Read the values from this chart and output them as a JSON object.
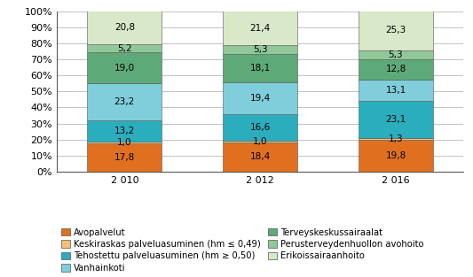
{
  "years": [
    "2 010",
    "2 012",
    "2 016"
  ],
  "series": [
    {
      "name": "Avopalvelut",
      "values": [
        17.8,
        18.4,
        19.8
      ],
      "color": "#E07020"
    },
    {
      "name": "Keskiraskas palveluasuminen (hm ≤ 0,49)",
      "values": [
        1.0,
        1.0,
        1.3
      ],
      "color": "#F5C07A"
    },
    {
      "name": "Tehostettu palveluasuminen (hm ≥ 0,50)",
      "values": [
        13.2,
        16.6,
        23.1
      ],
      "color": "#2AAEBD"
    },
    {
      "name": "Vanhainkoti",
      "values": [
        23.2,
        19.4,
        13.1
      ],
      "color": "#80CEDC"
    },
    {
      "name": "Terveyskeskussairaalat",
      "values": [
        19.0,
        18.1,
        12.8
      ],
      "color": "#5DAA78"
    },
    {
      "name": "Perusterveydenhuollon avohoito",
      "values": [
        5.2,
        5.3,
        5.3
      ],
      "color": "#90C89A"
    },
    {
      "name": "Erikoissairaanhoito",
      "values": [
        20.8,
        21.4,
        25.3
      ],
      "color": "#D8E8C8"
    }
  ],
  "ylim": [
    0,
    100
  ],
  "yticks": [
    0,
    10,
    20,
    30,
    40,
    50,
    60,
    70,
    80,
    90,
    100
  ],
  "yticklabels": [
    "0%",
    "10%",
    "20%",
    "30%",
    "40%",
    "50%",
    "60%",
    "70%",
    "80%",
    "90%",
    "100%"
  ],
  "bar_width": 0.55,
  "label_fontsize": 7.5,
  "legend_fontsize": 7.2,
  "tick_fontsize": 8.0
}
